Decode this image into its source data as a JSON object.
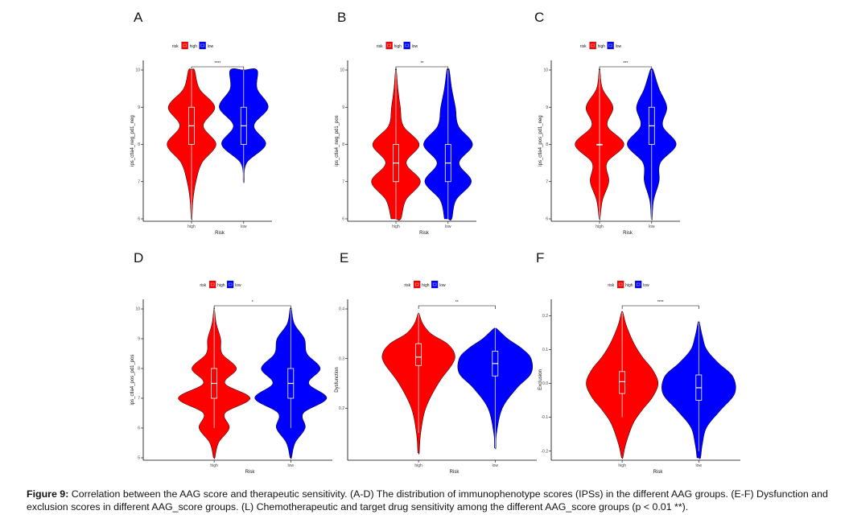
{
  "colors": {
    "high": "#ff0000",
    "low": "#0000ff",
    "axis": "#000000"
  },
  "legend": {
    "title": "risk",
    "items": [
      "high",
      "low"
    ]
  },
  "xlabel": "Risk",
  "chart_data": [
    {
      "panel": "A",
      "type": "violin",
      "categories": [
        "high",
        "low"
      ],
      "ylabel": "ips_ctla4_neg_pd1_neg",
      "ylim": [
        6,
        10
      ],
      "yticks": [
        "6",
        "7",
        "8",
        "9",
        "10"
      ],
      "significance": "****",
      "series": [
        {
          "category": "high",
          "color": "#ff0000",
          "min": 6,
          "q1": 8,
          "median": 8.5,
          "q3": 9,
          "max": 10,
          "density": [
            [
              6,
              0.02
            ],
            [
              6.5,
              0.06
            ],
            [
              7,
              0.18
            ],
            [
              7.5,
              0.42
            ],
            [
              8,
              1.0
            ],
            [
              8.5,
              0.48
            ],
            [
              9,
              0.95
            ],
            [
              9.5,
              0.32
            ],
            [
              10,
              0.12
            ]
          ]
        },
        {
          "category": "low",
          "color": "#0000ff",
          "min": 7,
          "q1": 8,
          "median": 8.5,
          "q3": 9,
          "max": 10,
          "density": [
            [
              7,
              0.02
            ],
            [
              7.5,
              0.12
            ],
            [
              8,
              0.9
            ],
            [
              8.5,
              0.42
            ],
            [
              9,
              1.0
            ],
            [
              9.5,
              0.55
            ],
            [
              10,
              0.55
            ]
          ]
        }
      ]
    },
    {
      "panel": "B",
      "type": "violin",
      "categories": [
        "high",
        "low"
      ],
      "ylabel": "ips_ctla4_neg_pd1_pos",
      "ylim": [
        6,
        10
      ],
      "yticks": [
        "6",
        "7",
        "8",
        "9",
        "10"
      ],
      "significance": "**",
      "series": [
        {
          "category": "high",
          "color": "#ff0000",
          "min": 6,
          "q1": 7,
          "median": 7.5,
          "q3": 8,
          "max": 10,
          "density": [
            [
              6,
              0.2
            ],
            [
              6.5,
              0.4
            ],
            [
              7,
              1.0
            ],
            [
              7.5,
              0.42
            ],
            [
              8,
              0.95
            ],
            [
              8.5,
              0.3
            ],
            [
              9,
              0.18
            ],
            [
              9.5,
              0.08
            ],
            [
              10,
              0.02
            ]
          ]
        },
        {
          "category": "low",
          "color": "#0000ff",
          "min": 6,
          "q1": 7,
          "median": 7.5,
          "q3": 8,
          "max": 10,
          "density": [
            [
              6,
              0.15
            ],
            [
              6.5,
              0.32
            ],
            [
              7,
              0.95
            ],
            [
              7.5,
              0.45
            ],
            [
              8,
              1.0
            ],
            [
              8.5,
              0.42
            ],
            [
              9,
              0.3
            ],
            [
              9.5,
              0.15
            ],
            [
              10,
              0.05
            ]
          ]
        }
      ]
    },
    {
      "panel": "C",
      "type": "violin",
      "categories": [
        "high",
        "low"
      ],
      "ylabel": "ips_ctla4_pos_pd1_neg",
      "ylim": [
        6,
        10
      ],
      "yticks": [
        "6",
        "7",
        "8",
        "9",
        "10"
      ],
      "significance": "***",
      "series": [
        {
          "category": "high",
          "color": "#ff0000",
          "min": 6,
          "q1": 8,
          "median": 8,
          "q3": 8,
          "max": 10,
          "density": [
            [
              6,
              0.02
            ],
            [
              6.5,
              0.12
            ],
            [
              7,
              0.38
            ],
            [
              7.5,
              0.3
            ],
            [
              8,
              1.0
            ],
            [
              8.5,
              0.32
            ],
            [
              9,
              0.55
            ],
            [
              9.5,
              0.12
            ],
            [
              10,
              0.02
            ]
          ]
        },
        {
          "category": "low",
          "color": "#0000ff",
          "min": 6,
          "q1": 8,
          "median": 8.5,
          "q3": 9,
          "max": 10,
          "density": [
            [
              6,
              0.02
            ],
            [
              6.5,
              0.08
            ],
            [
              7,
              0.3
            ],
            [
              7.5,
              0.35
            ],
            [
              8,
              1.0
            ],
            [
              8.5,
              0.45
            ],
            [
              9,
              0.62
            ],
            [
              9.5,
              0.3
            ],
            [
              10,
              0.06
            ]
          ]
        }
      ]
    },
    {
      "panel": "D",
      "type": "violin",
      "categories": [
        "high",
        "low"
      ],
      "ylabel": "ips_ctla4_pos_pd1_pos",
      "ylim": [
        5,
        10
      ],
      "yticks": [
        "5",
        "6",
        "7",
        "8",
        "9",
        "10"
      ],
      "significance": "*",
      "series": [
        {
          "category": "high",
          "color": "#ff0000",
          "min": 6,
          "q1": 7,
          "median": 7.5,
          "q3": 8,
          "max": 10,
          "density": [
            [
              5,
              0.02
            ],
            [
              5.5,
              0.12
            ],
            [
              6,
              0.42
            ],
            [
              6.5,
              0.3
            ],
            [
              7,
              1.0
            ],
            [
              7.5,
              0.3
            ],
            [
              8,
              0.62
            ],
            [
              8.5,
              0.22
            ],
            [
              9,
              0.18
            ],
            [
              9.5,
              0.06
            ],
            [
              10,
              0.01
            ]
          ]
        },
        {
          "category": "low",
          "color": "#0000ff",
          "min": 6,
          "q1": 7,
          "median": 7.5,
          "q3": 8,
          "max": 10,
          "density": [
            [
              5,
              0.02
            ],
            [
              5.5,
              0.12
            ],
            [
              6,
              0.4
            ],
            [
              6.5,
              0.35
            ],
            [
              7,
              1.0
            ],
            [
              7.5,
              0.5
            ],
            [
              8,
              0.82
            ],
            [
              8.5,
              0.45
            ],
            [
              9,
              0.38
            ],
            [
              9.5,
              0.1
            ],
            [
              10,
              0.02
            ]
          ]
        }
      ]
    },
    {
      "panel": "E",
      "type": "violin",
      "categories": [
        "high",
        "low"
      ],
      "ylabel": "Dysfunction",
      "ylim": [
        0.1,
        0.4
      ],
      "yticks": [
        "0.2",
        "0.3",
        "0.4"
      ],
      "significance": "**",
      "series": [
        {
          "category": "high",
          "color": "#ff0000",
          "min": 0.15,
          "q1": 0.286,
          "median": 0.303,
          "q3": 0.33,
          "max": 0.39,
          "density": [
            [
              0.11,
              0.02
            ],
            [
              0.15,
              0.06
            ],
            [
              0.2,
              0.2
            ],
            [
              0.25,
              0.55
            ],
            [
              0.29,
              0.95
            ],
            [
              0.31,
              1.0
            ],
            [
              0.33,
              0.8
            ],
            [
              0.35,
              0.35
            ],
            [
              0.37,
              0.12
            ],
            [
              0.39,
              0.02
            ]
          ]
        },
        {
          "category": "low",
          "color": "#0000ff",
          "min": 0.12,
          "q1": 0.265,
          "median": 0.29,
          "q3": 0.315,
          "max": 0.36,
          "density": [
            [
              0.12,
              0.02
            ],
            [
              0.15,
              0.04
            ],
            [
              0.2,
              0.2
            ],
            [
              0.24,
              0.6
            ],
            [
              0.27,
              1.0
            ],
            [
              0.3,
              1.0
            ],
            [
              0.32,
              0.75
            ],
            [
              0.34,
              0.35
            ],
            [
              0.36,
              0.05
            ]
          ]
        }
      ]
    },
    {
      "panel": "F",
      "type": "violin",
      "categories": [
        "high",
        "low"
      ],
      "ylabel": "Exclusion",
      "ylim": [
        -0.22,
        0.22
      ],
      "yticks": [
        "-0.2",
        "-0.1",
        "0.0",
        "0.1",
        "0.2"
      ],
      "significance": "****",
      "series": [
        {
          "category": "high",
          "color": "#ff0000",
          "min": -0.1,
          "q1": -0.03,
          "median": 0.005,
          "q3": 0.035,
          "max": 0.21,
          "density": [
            [
              -0.22,
              0.02
            ],
            [
              -0.18,
              0.1
            ],
            [
              -0.12,
              0.3
            ],
            [
              -0.08,
              0.55
            ],
            [
              -0.04,
              0.85
            ],
            [
              0.0,
              1.0
            ],
            [
              0.04,
              0.85
            ],
            [
              0.08,
              0.55
            ],
            [
              0.12,
              0.32
            ],
            [
              0.17,
              0.12
            ],
            [
              0.21,
              0.02
            ]
          ]
        },
        {
          "category": "low",
          "color": "#0000ff",
          "min": -0.2,
          "q1": -0.05,
          "median": -0.013,
          "q3": 0.025,
          "max": 0.18,
          "density": [
            [
              -0.22,
              0.05
            ],
            [
              -0.18,
              0.1
            ],
            [
              -0.13,
              0.22
            ],
            [
              -0.08,
              0.6
            ],
            [
              -0.03,
              1.0
            ],
            [
              0.02,
              0.95
            ],
            [
              0.06,
              0.55
            ],
            [
              0.1,
              0.22
            ],
            [
              0.14,
              0.1
            ],
            [
              0.18,
              0.02
            ]
          ]
        }
      ]
    }
  ],
  "caption": {
    "label": "Figure 9:",
    "text": "Correlation between the AAG score and therapeutic sensitivity. (A-D) The distribution of immunophenotype scores (IPSs) in the different AAG groups. (E-F) Dysfunction and exclusion scores in different AAG_score groups. (L) Chemotherapeutic and target drug sensitivity among the different AAG_score groups (p < 0.01 **)."
  }
}
